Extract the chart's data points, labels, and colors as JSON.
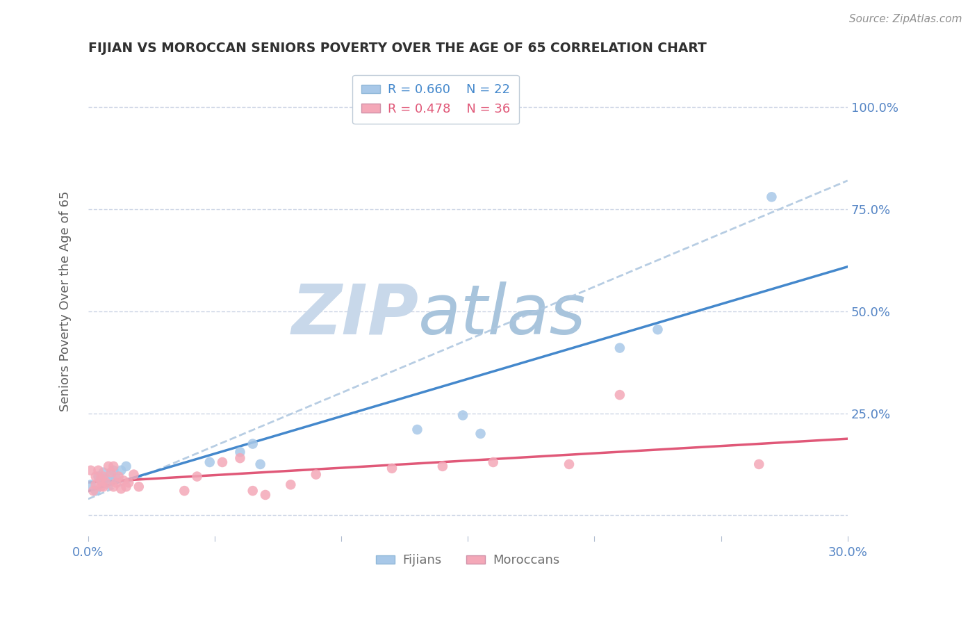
{
  "title": "FIJIAN VS MOROCCAN SENIORS POVERTY OVER THE AGE OF 65 CORRELATION CHART",
  "source": "Source: ZipAtlas.com",
  "ylabel_label": "Seniors Poverty Over the Age of 65",
  "xlim": [
    0.0,
    0.3
  ],
  "ylim": [
    -0.05,
    1.1
  ],
  "fijian_color": "#a8c8e8",
  "moroccan_color": "#f4a8b8",
  "fijian_line_color": "#4488cc",
  "moroccan_line_color": "#e05878",
  "dashed_line_color": "#b0c8e0",
  "watermark_zip_color": "#c8d8ea",
  "watermark_atlas_color": "#a8c4dc",
  "legend_fijian_r": "R = 0.660",
  "legend_fijian_n": "N = 22",
  "legend_moroccan_r": "R = 0.478",
  "legend_moroccan_n": "N = 36",
  "fijian_x": [
    0.001,
    0.003,
    0.004,
    0.005,
    0.006,
    0.007,
    0.008,
    0.009,
    0.01,
    0.011,
    0.013,
    0.015,
    0.048,
    0.06,
    0.065,
    0.068,
    0.13,
    0.148,
    0.155,
    0.21,
    0.225,
    0.27
  ],
  "fijian_y": [
    0.075,
    0.06,
    0.095,
    0.085,
    0.105,
    0.09,
    0.075,
    0.1,
    0.11,
    0.09,
    0.11,
    0.12,
    0.13,
    0.155,
    0.175,
    0.125,
    0.21,
    0.245,
    0.2,
    0.41,
    0.455,
    0.78
  ],
  "moroccan_x": [
    0.001,
    0.002,
    0.003,
    0.003,
    0.004,
    0.005,
    0.005,
    0.006,
    0.006,
    0.007,
    0.008,
    0.009,
    0.01,
    0.01,
    0.011,
    0.012,
    0.013,
    0.014,
    0.015,
    0.016,
    0.018,
    0.02,
    0.038,
    0.043,
    0.053,
    0.06,
    0.065,
    0.07,
    0.08,
    0.09,
    0.12,
    0.14,
    0.16,
    0.19,
    0.21,
    0.265
  ],
  "moroccan_y": [
    0.11,
    0.06,
    0.075,
    0.095,
    0.11,
    0.07,
    0.09,
    0.07,
    0.095,
    0.08,
    0.12,
    0.105,
    0.07,
    0.12,
    0.08,
    0.095,
    0.065,
    0.085,
    0.07,
    0.08,
    0.1,
    0.07,
    0.06,
    0.095,
    0.13,
    0.14,
    0.06,
    0.05,
    0.075,
    0.1,
    0.115,
    0.12,
    0.13,
    0.125,
    0.295,
    0.125
  ],
  "ytick_positions": [
    0.0,
    0.25,
    0.5,
    0.75,
    1.0
  ],
  "ytick_labels": [
    "",
    "25.0%",
    "50.0%",
    "75.0%",
    "100.0%"
  ],
  "xtick_positions": [
    0.0,
    0.05,
    0.1,
    0.15,
    0.2,
    0.25,
    0.3
  ],
  "xtick_labels": [
    "0.0%",
    "",
    "",
    "",
    "",
    "",
    "30.0%"
  ],
  "background_color": "#ffffff",
  "grid_color": "#ccd5e5",
  "title_color": "#303030",
  "axis_label_color": "#606060",
  "tick_label_color": "#5585c5",
  "dashed_line_y0": 0.04,
  "dashed_line_y1": 0.82
}
